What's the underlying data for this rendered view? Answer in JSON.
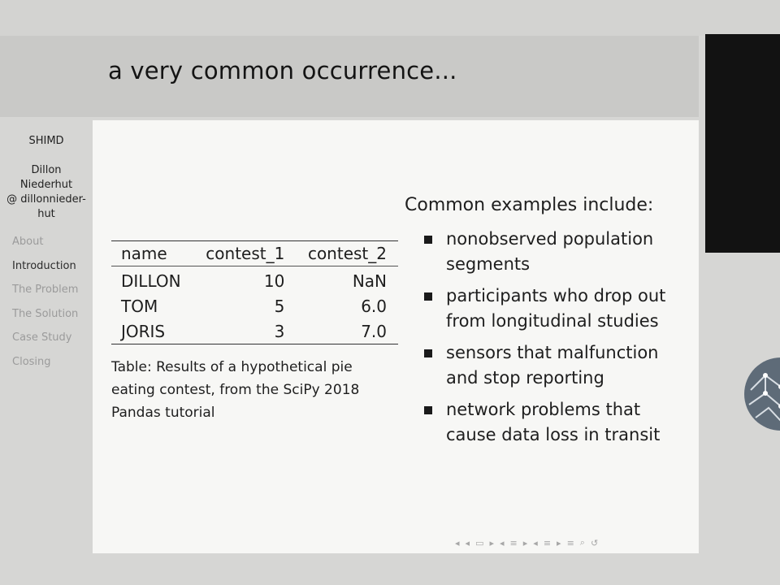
{
  "slide": {
    "title": "a very common occurrence..."
  },
  "sidebar": {
    "short_title": "SHIMD",
    "author_lines": [
      "Dillon",
      "Niederhut",
      "@ dillonnieder-",
      "hut"
    ],
    "nav": [
      {
        "label": "About",
        "active": false
      },
      {
        "label": "Introduction",
        "active": true
      },
      {
        "label": "The Problem",
        "active": false
      },
      {
        "label": "The Solution",
        "active": false
      },
      {
        "label": "Case Study",
        "active": false
      },
      {
        "label": "Closing",
        "active": false
      }
    ]
  },
  "table": {
    "headers": [
      "name",
      "contest_1",
      "contest_2"
    ],
    "rows": [
      [
        "DILLON",
        "10",
        "NaN"
      ],
      [
        "TOM",
        "5",
        "6.0"
      ],
      [
        "JORIS",
        "3",
        "7.0"
      ]
    ],
    "caption_lines": [
      "Table: Results of a hypothetical pie",
      "eating contest, from the SciPy 2018",
      "Pandas tutorial"
    ]
  },
  "examples": {
    "title": "Common examples include:",
    "items": [
      [
        "nonobserved population",
        "segments"
      ],
      [
        "participants who drop out",
        "from longitudinal studies"
      ],
      [
        "sensors that malfunction",
        "and stop reporting"
      ],
      [
        "network problems that",
        "cause data loss in transit"
      ]
    ]
  },
  "nav_controls": {
    "icons": [
      "nav-first-icon",
      "nav-frame-back-icon",
      "nav-frame-icon",
      "nav-frame-forward-icon",
      "nav-subsection-back-icon",
      "nav-subsection-icon",
      "nav-subsection-forward-icon",
      "nav-section-back-icon",
      "nav-section-icon",
      "nav-section-forward-icon",
      "nav-appendix-icon",
      "search-icon",
      "zoom-icon"
    ]
  }
}
